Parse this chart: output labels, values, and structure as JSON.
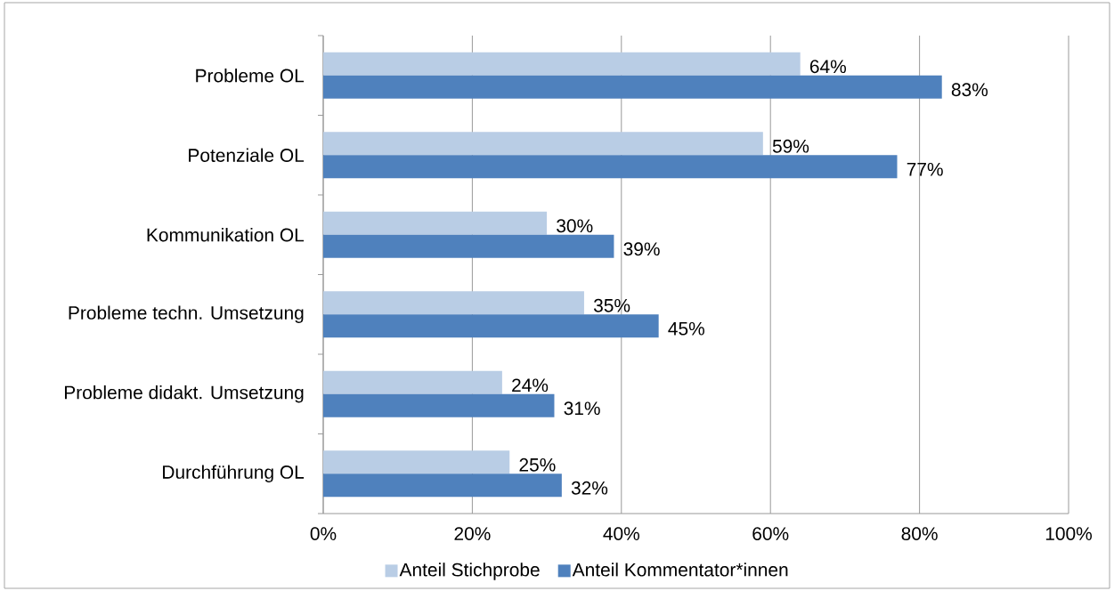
{
  "chart_data": {
    "type": "bar",
    "orientation": "horizontal",
    "categories": [
      "Probleme OL",
      "Potenziale OL",
      "Kommunikation OL",
      "Probleme techn. Umsetzung",
      "Probleme didakt. Umsetzung",
      "Durchführung OL"
    ],
    "series": [
      {
        "name": "Anteil Stichprobe",
        "color": "#b9cde5",
        "values": [
          64,
          59,
          30,
          35,
          24,
          25
        ],
        "value_labels": [
          "64%",
          "59%",
          "30%",
          "35%",
          "24%",
          "25%"
        ]
      },
      {
        "name": "Anteil Kommentator*innen",
        "color": "#4f81bd",
        "values": [
          83,
          77,
          39,
          45,
          31,
          32
        ],
        "value_labels": [
          "83%",
          "77%",
          "39%",
          "45%",
          "31%",
          "32%"
        ]
      }
    ],
    "xlim": [
      0,
      100
    ],
    "xticks": [
      {
        "value": 0,
        "label": "0%"
      },
      {
        "value": 20,
        "label": "20%"
      },
      {
        "value": 40,
        "label": "40%"
      },
      {
        "value": 60,
        "label": "60%"
      },
      {
        "value": 80,
        "label": "80%"
      },
      {
        "value": 100,
        "label": "100%"
      }
    ],
    "grid": "x",
    "legend": "bottom"
  }
}
